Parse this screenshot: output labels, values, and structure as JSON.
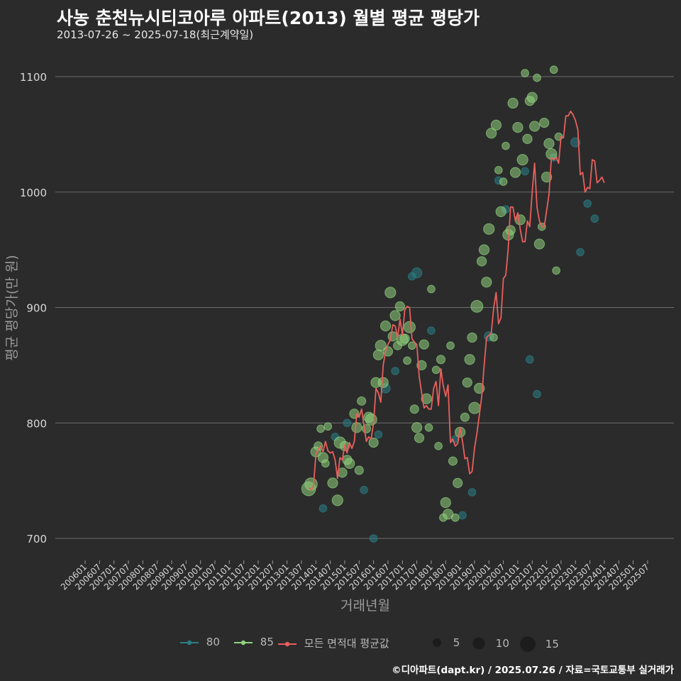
{
  "title": "사농 춘천뉴시티코아루 아파트(2013) 월별 평균 평당가",
  "subtitle": "2013-07-26 ~ 2025-07-18(최근계약일)",
  "footer": "©디아파트(dapt.kr) / 2025.07.26 / 자료=국토교통부 실거래가",
  "colors": {
    "background": "#2b2b2c",
    "grid": "#6c6c6c",
    "series_80": "#2a7f86",
    "series_85": "#8fd27c",
    "avg_line": "#e8605c"
  },
  "chart_data": {
    "type": "scatter",
    "title": "사농 춘천뉴시티코아루 아파트(2013) 월별 평균 평당가",
    "subtitle": "2013-07-26 ~ 2025-07-18(최근계약일)",
    "xlabel": "거래년월",
    "ylabel": "평균 평당가(만 원)",
    "ylim": [
      680,
      1115
    ],
    "yticks": [
      700,
      800,
      900,
      1000,
      1100
    ],
    "xticks": [
      "200601",
      "200607",
      "200701",
      "200707",
      "200801",
      "200807",
      "200901",
      "200907",
      "201001",
      "201007",
      "201101",
      "201107",
      "201201",
      "201207",
      "201301",
      "201307",
      "201401",
      "201407",
      "201501",
      "201507",
      "201601",
      "201607",
      "201701",
      "201707",
      "201801",
      "201807",
      "201901",
      "201907",
      "202001",
      "202007",
      "202101",
      "202107",
      "202201",
      "202207",
      "202301",
      "202307",
      "202401",
      "202407",
      "202501",
      "202507"
    ],
    "grid": true,
    "legend_position": "bottom",
    "legend": {
      "series": [
        "80",
        "85",
        "모든 면적대 평균값"
      ],
      "size_label_values": [
        5,
        10,
        15
      ]
    },
    "avg_line": {
      "name": "모든 면적대 평균값",
      "points": [
        [
          "2013-10",
          744
        ],
        [
          "2013-11",
          742
        ],
        [
          "2013-12",
          745
        ],
        [
          "2014-01",
          773
        ],
        [
          "2014-02",
          777
        ],
        [
          "2014-03",
          780
        ],
        [
          "2014-04",
          775
        ],
        [
          "2014-05",
          784
        ],
        [
          "2014-06",
          776
        ],
        [
          "2014-07",
          774
        ],
        [
          "2014-08",
          775
        ],
        [
          "2014-09",
          768
        ],
        [
          "2014-10",
          752
        ],
        [
          "2014-11",
          770
        ],
        [
          "2014-12",
          768
        ],
        [
          "2015-01",
          781
        ],
        [
          "2015-02",
          774
        ],
        [
          "2015-03",
          783
        ],
        [
          "2015-04",
          778
        ],
        [
          "2015-05",
          784
        ],
        [
          "2015-06",
          808
        ],
        [
          "2015-07",
          805
        ],
        [
          "2015-08",
          812
        ],
        [
          "2015-09",
          798
        ],
        [
          "2015-10",
          784
        ],
        [
          "2015-11",
          788
        ],
        [
          "2015-12",
          786
        ],
        [
          "2016-01",
          800
        ],
        [
          "2016-02",
          830
        ],
        [
          "2016-03",
          826
        ],
        [
          "2016-04",
          818
        ],
        [
          "2016-05",
          850
        ],
        [
          "2016-06",
          862
        ],
        [
          "2016-07",
          868
        ],
        [
          "2016-08",
          872
        ],
        [
          "2016-09",
          885
        ],
        [
          "2016-10",
          884
        ],
        [
          "2016-11",
          874
        ],
        [
          "2016-12",
          890
        ],
        [
          "2017-01",
          876
        ],
        [
          "2017-02",
          898
        ],
        [
          "2017-03",
          901
        ],
        [
          "2017-04",
          900
        ],
        [
          "2017-05",
          873
        ],
        [
          "2017-06",
          870
        ],
        [
          "2017-07",
          868
        ],
        [
          "2017-08",
          840
        ],
        [
          "2017-09",
          826
        ],
        [
          "2017-10",
          813
        ],
        [
          "2017-11",
          815
        ],
        [
          "2017-12",
          812
        ],
        [
          "2018-01",
          812
        ],
        [
          "2018-02",
          830
        ],
        [
          "2018-03",
          836
        ],
        [
          "2018-04",
          815
        ],
        [
          "2018-05",
          847
        ],
        [
          "2018-06",
          832
        ],
        [
          "2018-07",
          823
        ],
        [
          "2018-08",
          833
        ],
        [
          "2018-09",
          783
        ],
        [
          "2018-10",
          786
        ],
        [
          "2018-11",
          780
        ],
        [
          "2018-12",
          782
        ],
        [
          "2019-01",
          796
        ],
        [
          "2019-02",
          784
        ],
        [
          "2019-03",
          769
        ],
        [
          "2019-04",
          770
        ],
        [
          "2019-05",
          756
        ],
        [
          "2019-06",
          758
        ],
        [
          "2019-07",
          778
        ],
        [
          "2019-08",
          791
        ],
        [
          "2019-09",
          807
        ],
        [
          "2019-10",
          823
        ],
        [
          "2019-11",
          850
        ],
        [
          "2019-12",
          874
        ],
        [
          "2020-01",
          876
        ],
        [
          "2020-02",
          878
        ],
        [
          "2020-03",
          900
        ],
        [
          "2020-04",
          913
        ],
        [
          "2020-05",
          886
        ],
        [
          "2020-06",
          891
        ],
        [
          "2020-07",
          925
        ],
        [
          "2020-08",
          928
        ],
        [
          "2020-09",
          950
        ],
        [
          "2020-10",
          987
        ],
        [
          "2020-11",
          987
        ],
        [
          "2020-12",
          975
        ],
        [
          "2021-01",
          982
        ],
        [
          "2021-02",
          968
        ],
        [
          "2021-03",
          957
        ],
        [
          "2021-04",
          957
        ],
        [
          "2021-05",
          975
        ],
        [
          "2021-06",
          970
        ],
        [
          "2021-07",
          1000
        ],
        [
          "2021-08",
          1025
        ],
        [
          "2021-09",
          987
        ],
        [
          "2021-10",
          975
        ],
        [
          "2021-11",
          970
        ],
        [
          "2021-12",
          970
        ],
        [
          "2022-01",
          984
        ],
        [
          "2022-02",
          998
        ],
        [
          "2022-03",
          1030
        ],
        [
          "2022-04",
          1028
        ],
        [
          "2022-05",
          1030
        ],
        [
          "2022-06",
          1025
        ],
        [
          "2022-07",
          1048
        ],
        [
          "2022-08",
          1047
        ],
        [
          "2022-09",
          1066
        ],
        [
          "2022-10",
          1066
        ],
        [
          "2022-11",
          1070
        ],
        [
          "2022-12",
          1067
        ],
        [
          "2023-01",
          1062
        ],
        [
          "2023-02",
          1054
        ],
        [
          "2023-03",
          1015
        ],
        [
          "2023-04",
          1017
        ],
        [
          "2023-05",
          1000
        ],
        [
          "2023-06",
          1004
        ],
        [
          "2023-07",
          1003
        ],
        [
          "2023-08",
          1028
        ],
        [
          "2023-09",
          1027
        ],
        [
          "2023-10",
          1008
        ],
        [
          "2023-11",
          1010
        ],
        [
          "2023-12",
          1013
        ],
        [
          "2024-01",
          1008
        ]
      ]
    },
    "series": [
      {
        "name": "80",
        "points": [
          [
            "2014-04",
            726,
            2
          ],
          [
            "2014-09",
            788,
            2
          ],
          [
            "2015-02",
            800,
            2
          ],
          [
            "2015-09",
            742,
            2
          ],
          [
            "2016-01",
            700,
            2
          ],
          [
            "2016-03",
            790,
            2
          ],
          [
            "2016-06",
            830,
            4
          ],
          [
            "2016-10",
            845,
            2
          ],
          [
            "2017-05",
            927,
            2
          ],
          [
            "2017-07",
            930,
            5
          ],
          [
            "2018-01",
            880,
            2
          ],
          [
            "2018-11",
            786,
            2
          ],
          [
            "2019-02",
            720,
            2
          ],
          [
            "2019-06",
            740,
            2
          ],
          [
            "2020-01",
            875,
            4
          ],
          [
            "2020-05",
            1010,
            2
          ],
          [
            "2020-08",
            985,
            2
          ],
          [
            "2021-04",
            1018,
            2
          ],
          [
            "2021-06",
            855,
            2
          ],
          [
            "2021-09",
            825,
            2
          ],
          [
            "2022-04",
            1030,
            2
          ],
          [
            "2023-01",
            1043,
            4
          ],
          [
            "2023-03",
            948,
            2
          ],
          [
            "2023-06",
            990,
            2
          ],
          [
            "2023-09",
            977,
            2
          ]
        ]
      },
      {
        "name": "85",
        "points": [
          [
            "2013-10",
            743,
            12
          ],
          [
            "2013-11",
            747,
            9
          ],
          [
            "2014-01",
            775,
            5
          ],
          [
            "2014-02",
            780,
            3
          ],
          [
            "2014-03",
            795,
            2
          ],
          [
            "2014-04",
            770,
            5
          ],
          [
            "2014-05",
            765,
            2
          ],
          [
            "2014-06",
            797,
            2
          ],
          [
            "2014-08",
            748,
            5
          ],
          [
            "2014-10",
            733,
            6
          ],
          [
            "2014-11",
            783,
            7
          ],
          [
            "2014-12",
            757,
            4
          ],
          [
            "2015-01",
            780,
            4
          ],
          [
            "2015-02",
            768,
            4
          ],
          [
            "2015-03",
            765,
            5
          ],
          [
            "2015-05",
            808,
            4
          ],
          [
            "2015-06",
            796,
            5
          ],
          [
            "2015-07",
            759,
            3
          ],
          [
            "2015-08",
            819,
            3
          ],
          [
            "2015-10",
            795,
            3
          ],
          [
            "2015-11",
            805,
            5
          ],
          [
            "2015-12",
            803,
            7
          ],
          [
            "2016-01",
            783,
            4
          ],
          [
            "2016-02",
            835,
            5
          ],
          [
            "2016-03",
            859,
            5
          ],
          [
            "2016-04",
            867,
            6
          ],
          [
            "2016-05",
            835,
            5
          ],
          [
            "2016-06",
            884,
            5
          ],
          [
            "2016-07",
            862,
            4
          ],
          [
            "2016-08",
            913,
            6
          ],
          [
            "2016-09",
            875,
            4
          ],
          [
            "2016-10",
            893,
            5
          ],
          [
            "2016-11",
            867,
            3
          ],
          [
            "2016-12",
            901,
            4
          ],
          [
            "2017-01",
            872,
            7
          ],
          [
            "2017-02",
            873,
            4
          ],
          [
            "2017-03",
            854,
            2
          ],
          [
            "2017-04",
            883,
            7
          ],
          [
            "2017-05",
            867,
            2
          ],
          [
            "2017-06",
            812,
            3
          ],
          [
            "2017-07",
            796,
            5
          ],
          [
            "2017-08",
            787,
            4
          ],
          [
            "2017-09",
            850,
            4
          ],
          [
            "2017-10",
            868,
            4
          ],
          [
            "2017-11",
            821,
            5
          ],
          [
            "2017-12",
            796,
            2
          ],
          [
            "2018-01",
            916,
            2
          ],
          [
            "2018-03",
            846,
            2
          ],
          [
            "2018-04",
            780,
            2
          ],
          [
            "2018-05",
            855,
            3
          ],
          [
            "2018-06",
            718,
            2
          ],
          [
            "2018-07",
            731,
            5
          ],
          [
            "2018-08",
            721,
            5
          ],
          [
            "2018-09",
            867,
            2
          ],
          [
            "2018-10",
            767,
            3
          ],
          [
            "2018-11",
            718,
            2
          ],
          [
            "2018-12",
            748,
            4
          ],
          [
            "2019-01",
            792,
            5
          ],
          [
            "2019-03",
            805,
            3
          ],
          [
            "2019-04",
            835,
            4
          ],
          [
            "2019-05",
            855,
            5
          ],
          [
            "2019-06",
            874,
            4
          ],
          [
            "2019-07",
            813,
            7
          ],
          [
            "2019-08",
            901,
            8
          ],
          [
            "2019-09",
            830,
            5
          ],
          [
            "2019-10",
            940,
            4
          ],
          [
            "2019-11",
            950,
            5
          ],
          [
            "2019-12",
            922,
            5
          ],
          [
            "2020-01",
            968,
            6
          ],
          [
            "2020-02",
            1051,
            5
          ],
          [
            "2020-03",
            874,
            2
          ],
          [
            "2020-04",
            1058,
            5
          ],
          [
            "2020-05",
            1019,
            2
          ],
          [
            "2020-06",
            983,
            5
          ],
          [
            "2020-07",
            1009,
            2
          ],
          [
            "2020-08",
            1040,
            2
          ],
          [
            "2020-09",
            963,
            6
          ],
          [
            "2020-10",
            967,
            4
          ],
          [
            "2020-11",
            1077,
            5
          ],
          [
            "2020-12",
            1017,
            5
          ],
          [
            "2021-01",
            1056,
            5
          ],
          [
            "2021-02",
            976,
            5
          ],
          [
            "2021-03",
            1028,
            6
          ],
          [
            "2021-04",
            1103,
            2
          ],
          [
            "2021-05",
            1046,
            4
          ],
          [
            "2021-06",
            1079,
            4
          ],
          [
            "2021-07",
            1082,
            5
          ],
          [
            "2021-08",
            1057,
            5
          ],
          [
            "2021-09",
            1099,
            2
          ],
          [
            "2021-10",
            955,
            5
          ],
          [
            "2021-11",
            970,
            2
          ],
          [
            "2021-12",
            1060,
            4
          ],
          [
            "2022-01",
            1013,
            5
          ],
          [
            "2022-02",
            1042,
            5
          ],
          [
            "2022-03",
            1033,
            6
          ],
          [
            "2022-04",
            1106,
            2
          ],
          [
            "2022-05",
            932,
            2
          ],
          [
            "2022-06",
            1048,
            2
          ]
        ]
      }
    ]
  }
}
